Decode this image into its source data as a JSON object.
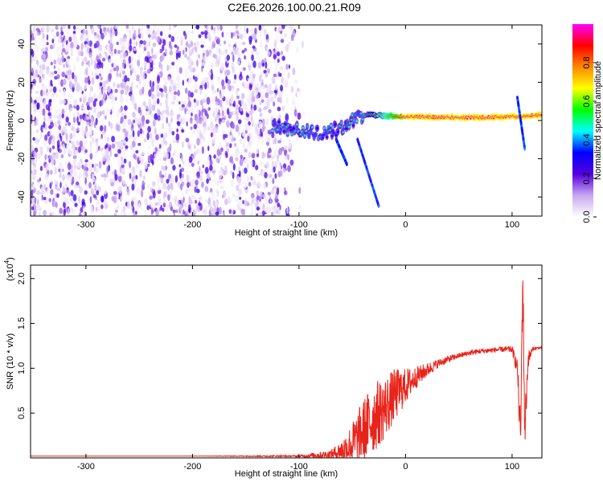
{
  "title": "C2E6.2026.100.00.21.R09",
  "chart_data": [
    {
      "type": "heatmap",
      "xlabel": "Height of straight line (km)",
      "ylabel": "Frequency (Hz)",
      "xlim": [
        -352,
        128
      ],
      "ylim": [
        -50,
        50
      ],
      "xticks": [
        -300,
        -200,
        -100,
        0,
        100
      ],
      "yticks": [
        -40,
        -20,
        0,
        20,
        40
      ],
      "colorbar": {
        "label": "Normalized spectral amplitude",
        "range": [
          0,
          1
        ],
        "ticks": [
          0.0,
          0.2,
          0.4,
          0.6,
          0.8
        ],
        "tick_labels": [
          "0.0",
          "0.2",
          "0.4",
          "0.6",
          "0.8"
        ],
        "colors": [
          "#ffffff",
          "#c8a8f0",
          "#5500dd",
          "#0000ff",
          "#00ffff",
          "#00ff00",
          "#ffff00",
          "#ff8800",
          "#ff0000",
          "#ff00ff"
        ]
      },
      "ridge": [
        {
          "x": -120,
          "f": -3.0
        },
        {
          "x": -100,
          "f": -5.0
        },
        {
          "x": -80,
          "f": -7.0
        },
        {
          "x": -60,
          "f": -4.0
        },
        {
          "x": -45,
          "f": 2.0
        },
        {
          "x": -35,
          "f": 3.0
        },
        {
          "x": 0,
          "f": 2.0
        },
        {
          "x": 50,
          "f": 1.5
        },
        {
          "x": 100,
          "f": 2.0
        },
        {
          "x": 125,
          "f": 3.0
        }
      ],
      "branches": [
        {
          "points": [
            {
              "x": -65,
              "f": -10
            },
            {
              "x": -55,
              "f": -23
            }
          ]
        },
        {
          "points": [
            {
              "x": -45,
              "f": -10
            },
            {
              "x": -25,
              "f": -45
            }
          ]
        },
        {
          "points": [
            {
              "x": 105,
              "f": 12
            },
            {
              "x": 112,
              "f": -15
            }
          ]
        }
      ]
    },
    {
      "type": "line",
      "xlabel": "Height of straight line (km)",
      "ylabel": "SNR (10 * v/v)",
      "multiplier": "(x10",
      "multiplier_exp": "4",
      "multiplier_close": ")",
      "xlim": [
        -352,
        128
      ],
      "ylim": [
        0,
        2.15
      ],
      "xticks": [
        -300,
        -200,
        -100,
        0,
        100
      ],
      "yticks": [
        0.5,
        1.0,
        1.5,
        2.0
      ],
      "ytick_labels": [
        "0.5",
        "1.0",
        "1.5",
        "2.0"
      ],
      "color": "#e8231a",
      "series": [
        {
          "x": [
            -352,
            -300,
            -200,
            -100,
            -70,
            -60,
            -50,
            -40,
            -30,
            -20,
            -10,
            0,
            10,
            20,
            30,
            40,
            50,
            60,
            70,
            80,
            90,
            100,
            105,
            108,
            110,
            112,
            115,
            120,
            128
          ],
          "y": [
            0.02,
            0.02,
            0.02,
            0.02,
            0.04,
            0.08,
            0.15,
            0.3,
            0.45,
            0.55,
            0.7,
            0.8,
            0.9,
            0.98,
            1.05,
            1.1,
            1.14,
            1.17,
            1.19,
            1.2,
            1.21,
            1.21,
            1.0,
            0.2,
            2.05,
            0.3,
            1.1,
            1.22,
            1.23
          ],
          "noise": [
            0,
            0,
            0,
            0.01,
            0.05,
            0.12,
            0.25,
            0.35,
            0.4,
            0.35,
            0.3,
            0.2,
            0.12,
            0.08,
            0.05,
            0.04,
            0.03,
            0.03,
            0.03,
            0.03,
            0.03,
            0.04,
            0.1,
            0.3,
            0.3,
            0.3,
            0.1,
            0.02,
            0.01
          ]
        }
      ]
    }
  ]
}
